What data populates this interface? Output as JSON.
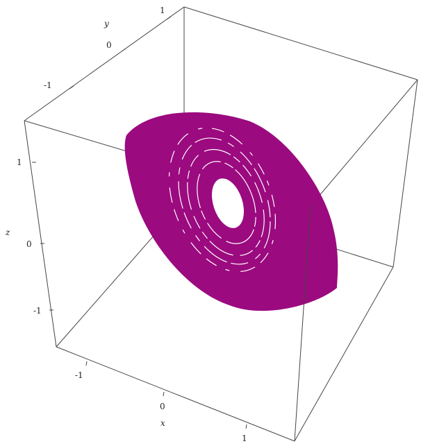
{
  "chart_data": {
    "type": "scatter3d",
    "title": "",
    "series": [
      {
        "color": "#9b0a7f",
        "shape": "annulus",
        "center": [
          0,
          0,
          0
        ],
        "outer_extent": {
          "x": [
            -1.0,
            1.0
          ],
          "y": [
            -1.0,
            1.0
          ],
          "z": [
            -1.2,
            1.2
          ]
        }
      }
    ],
    "axes": {
      "x": {
        "label": "x",
        "ticks": [
          -1,
          0,
          1
        ],
        "tick_labels": [
          "-1",
          "0",
          "1"
        ],
        "range": [
          -1.5,
          1.5
        ]
      },
      "y": {
        "label": "y",
        "ticks": [
          -1,
          0,
          1
        ],
        "tick_labels": [
          "-1",
          "0",
          "1"
        ],
        "range": [
          -1.5,
          1.5
        ]
      },
      "z": {
        "label": "z",
        "ticks": [
          -1,
          0,
          1
        ],
        "tick_labels": [
          "-1",
          "0",
          "1"
        ],
        "range": [
          -1.5,
          1.5
        ]
      }
    },
    "box": true,
    "grid": false
  }
}
